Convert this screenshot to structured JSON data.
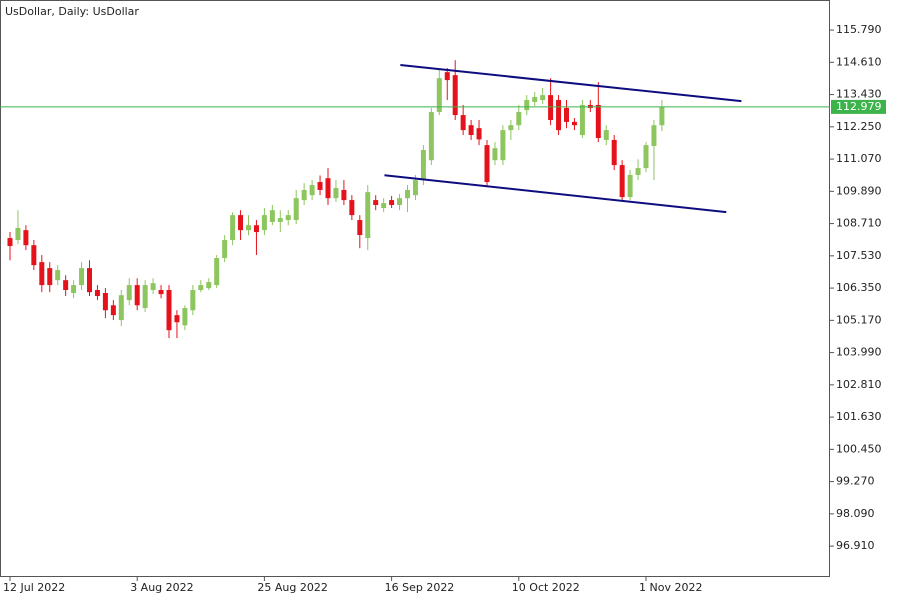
{
  "chart_data": {
    "type": "candlestick",
    "title": "UsDollar, Daily:  UsDollar",
    "categories": [
      "12 Jul 2022",
      null,
      null,
      null,
      null,
      null,
      null,
      null,
      null,
      null,
      null,
      null,
      null,
      null,
      null,
      null,
      "3 Aug 2022",
      null,
      null,
      null,
      null,
      null,
      null,
      null,
      null,
      null,
      null,
      null,
      null,
      null,
      null,
      null,
      "25 Aug 2022",
      null,
      null,
      null,
      null,
      null,
      null,
      null,
      null,
      null,
      null,
      null,
      null,
      null,
      null,
      null,
      "16 Sep 2022",
      null,
      null,
      null,
      null,
      null,
      null,
      null,
      null,
      null,
      null,
      null,
      null,
      null,
      null,
      null,
      "10 Oct 2022",
      null,
      null,
      null,
      null,
      null,
      null,
      null,
      null,
      null,
      null,
      null,
      null,
      null,
      null,
      null,
      "1 Nov 2022",
      null,
      null
    ],
    "open": [
      108.18,
      108.11,
      108.47,
      107.92,
      107.3,
      107.08,
      106.64,
      106.64,
      106.17,
      106.46,
      107.08,
      106.28,
      106.17,
      105.72,
      105.18,
      105.91,
      106.46,
      105.62,
      106.28,
      106.28,
      106.28,
      105.36,
      104.99,
      105.54,
      106.28,
      106.35,
      106.46,
      107.45,
      108.11,
      109.02,
      108.47,
      108.65,
      108.47,
      108.77,
      108.77,
      108.84,
      108.84,
      109.57,
      109.75,
      110.23,
      110.37,
      109.64,
      109.94,
      109.57,
      108.84,
      108.18,
      109.57,
      109.28,
      109.57,
      109.39,
      109.64,
      109.75,
      110.3,
      111.03,
      112.79,
      114.25,
      114.14,
      112.68,
      112.31,
      112.2,
      111.58,
      111.03,
      111.03,
      112.13,
      112.31,
      112.86,
      113.16,
      113.23,
      113.41,
      113.23,
      112.94,
      112.43,
      111.95,
      113.05,
      113.05,
      111.77,
      111.77,
      110.85,
      109.68,
      110.49,
      110.74,
      111.55,
      112.31
    ],
    "high": [
      108.4,
      109.2,
      108.65,
      108.11,
      107.56,
      107.3,
      107.19,
      106.82,
      106.64,
      107.3,
      107.37,
      106.46,
      106.35,
      105.91,
      106.28,
      106.71,
      106.71,
      106.64,
      106.71,
      106.46,
      106.46,
      105.54,
      105.72,
      106.46,
      106.64,
      106.71,
      107.56,
      108.29,
      109.13,
      109.2,
      109.02,
      108.84,
      109.28,
      109.39,
      109.2,
      109.2,
      109.94,
      110.19,
      110.3,
      110.47,
      110.74,
      110.3,
      110.3,
      109.75,
      109.02,
      110.12,
      109.75,
      109.64,
      109.72,
      109.79,
      110.12,
      110.49,
      111.58,
      112.94,
      114.33,
      114.4,
      114.69,
      113.05,
      112.5,
      112.5,
      111.77,
      111.69,
      112.31,
      112.5,
      113.05,
      113.41,
      113.52,
      113.67,
      114.03,
      113.41,
      113.23,
      112.57,
      113.23,
      113.23,
      113.89,
      112.31,
      111.95,
      111.03,
      110.67,
      111.06,
      111.69,
      112.5,
      113.23
    ],
    "low": [
      107.37,
      107.96,
      107.74,
      107.01,
      106.2,
      106.2,
      106.46,
      106.06,
      105.98,
      106.28,
      106.06,
      105.91,
      105.25,
      105.18,
      104.96,
      105.72,
      105.54,
      105.47,
      106.13,
      105.98,
      104.52,
      104.52,
      104.81,
      105.36,
      106.2,
      106.28,
      106.35,
      107.3,
      107.92,
      108.11,
      108.29,
      107.56,
      108.29,
      108.65,
      108.4,
      108.65,
      108.69,
      109.39,
      109.57,
      109.75,
      109.39,
      109.5,
      109.39,
      108.84,
      107.81,
      107.74,
      109.2,
      109.13,
      109.28,
      109.2,
      109.13,
      109.57,
      110.12,
      110.85,
      112.68,
      113.23,
      112.5,
      111.95,
      111.77,
      111.58,
      110.08,
      110.85,
      110.85,
      111.77,
      112.13,
      112.68,
      113.01,
      113.08,
      112.31,
      111.95,
      112.2,
      112.13,
      111.84,
      112.79,
      111.69,
      111.58,
      110.67,
      109.57,
      109.57,
      110.3,
      110.59,
      110.3,
      112.09
    ],
    "close": [
      107.89,
      108.55,
      107.92,
      107.19,
      106.46,
      106.46,
      107.01,
      106.28,
      106.46,
      107.08,
      106.2,
      106.06,
      105.54,
      105.36,
      106.09,
      106.46,
      105.72,
      106.46,
      106.53,
      106.13,
      104.81,
      105.1,
      105.62,
      106.28,
      106.46,
      106.57,
      107.45,
      108.11,
      109.02,
      108.47,
      108.65,
      108.4,
      109.02,
      109.2,
      108.91,
      109.02,
      109.64,
      109.94,
      110.12,
      109.94,
      109.64,
      110.01,
      109.57,
      109.02,
      108.29,
      109.86,
      109.39,
      109.46,
      109.39,
      109.64,
      109.94,
      110.3,
      111.4,
      112.79,
      114.03,
      113.96,
      112.68,
      112.13,
      111.95,
      111.79,
      110.23,
      111.47,
      112.13,
      112.31,
      112.79,
      113.23,
      113.34,
      113.41,
      112.5,
      112.13,
      112.43,
      112.31,
      113.05,
      112.94,
      111.84,
      112.13,
      110.85,
      109.68,
      110.49,
      110.74,
      111.58,
      112.31,
      112.979
    ],
    "up_color": "#8dc55f",
    "down_color": "#e5121b",
    "current_price": {
      "value": 112.979,
      "label": "112.979",
      "color": "#3cb44b"
    },
    "trendlines": [
      {
        "x": [
          49.1,
          92
        ],
        "y": [
          114.51,
          113.19
        ],
        "color": "#0d0d80"
      },
      {
        "x": [
          47.1,
          90.1
        ],
        "y": [
          110.48,
          109.13
        ],
        "color": "#0d0d80"
      }
    ],
    "ylim": [
      95.78,
      116.89
    ],
    "yticks": [
      {
        "value": 115.79,
        "label": "115.790"
      },
      {
        "value": 114.61,
        "label": "114.610"
      },
      {
        "value": 113.43,
        "label": "113.430"
      },
      {
        "value": 112.25,
        "label": "112.250"
      },
      {
        "value": 111.07,
        "label": "111.070"
      },
      {
        "value": 109.89,
        "label": "109.890"
      },
      {
        "value": 108.71,
        "label": "108.710"
      },
      {
        "value": 107.53,
        "label": "107.530"
      },
      {
        "value": 106.35,
        "label": "106.350"
      },
      {
        "value": 105.17,
        "label": "105.170"
      },
      {
        "value": 103.99,
        "label": "103.990"
      },
      {
        "value": 102.81,
        "label": "102.810"
      },
      {
        "value": 101.63,
        "label": "101.630"
      },
      {
        "value": 100.45,
        "label": "100.450"
      },
      {
        "value": 99.27,
        "label": "99.270"
      },
      {
        "value": 98.09,
        "label": "98.090"
      },
      {
        "value": 96.91,
        "label": "96.910"
      }
    ]
  }
}
